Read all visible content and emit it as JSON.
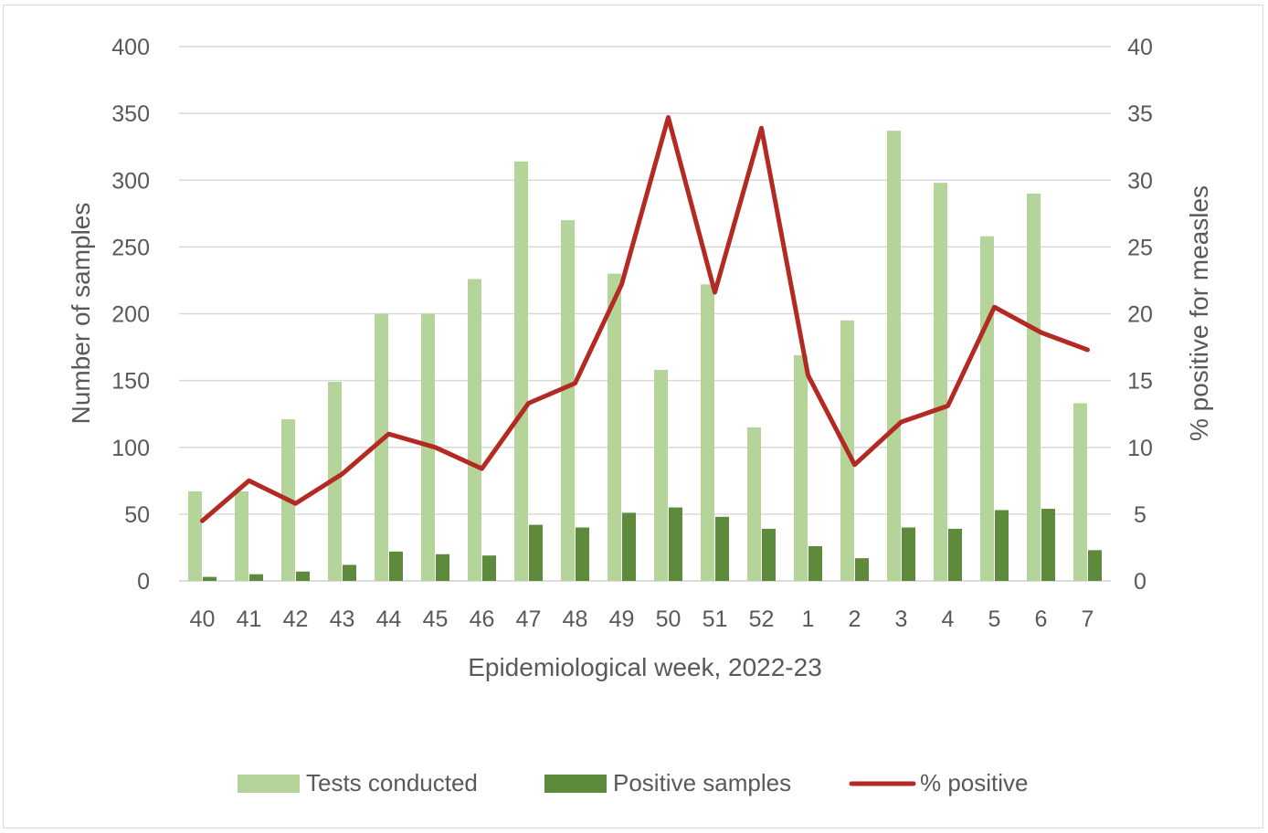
{
  "chart_data": {
    "type": "bar",
    "categories": [
      "40",
      "41",
      "42",
      "43",
      "44",
      "45",
      "46",
      "47",
      "48",
      "49",
      "50",
      "51",
      "52",
      "1",
      "2",
      "3",
      "4",
      "5",
      "6",
      "7"
    ],
    "series": [
      {
        "name": "Tests conducted",
        "type": "bar",
        "axis": "left",
        "color": "#b4d49a",
        "values": [
          67,
          67,
          121,
          149,
          200,
          200,
          226,
          314,
          270,
          230,
          158,
          222,
          115,
          169,
          195,
          337,
          298,
          258,
          290,
          133
        ]
      },
      {
        "name": "Positive samples",
        "type": "bar",
        "axis": "left",
        "color": "#5e8a3c",
        "values": [
          3,
          5,
          7,
          12,
          22,
          20,
          19,
          42,
          40,
          51,
          55,
          48,
          39,
          26,
          17,
          40,
          39,
          53,
          54,
          23
        ]
      },
      {
        "name": "% positive",
        "type": "line",
        "axis": "right",
        "color": "#b22a22",
        "values": [
          4.5,
          7.5,
          5.8,
          8.0,
          11.0,
          10.0,
          8.4,
          13.3,
          14.8,
          22.2,
          34.7,
          21.6,
          33.9,
          15.4,
          8.7,
          11.9,
          13.1,
          20.5,
          18.6,
          17.3
        ]
      }
    ],
    "xlabel": "Epidemiological week, 2022-23",
    "ylabel": "Number of samples",
    "y2label": "% positive for measles",
    "ylim": [
      0,
      400
    ],
    "y2lim": [
      0,
      40
    ],
    "yticks": [
      "0",
      "50",
      "100",
      "150",
      "200",
      "250",
      "300",
      "350",
      "400"
    ],
    "y2ticks": [
      "0",
      "5",
      "10",
      "15",
      "20",
      "25",
      "30",
      "35",
      "40"
    ],
    "grid": true,
    "legend": "bottom"
  }
}
